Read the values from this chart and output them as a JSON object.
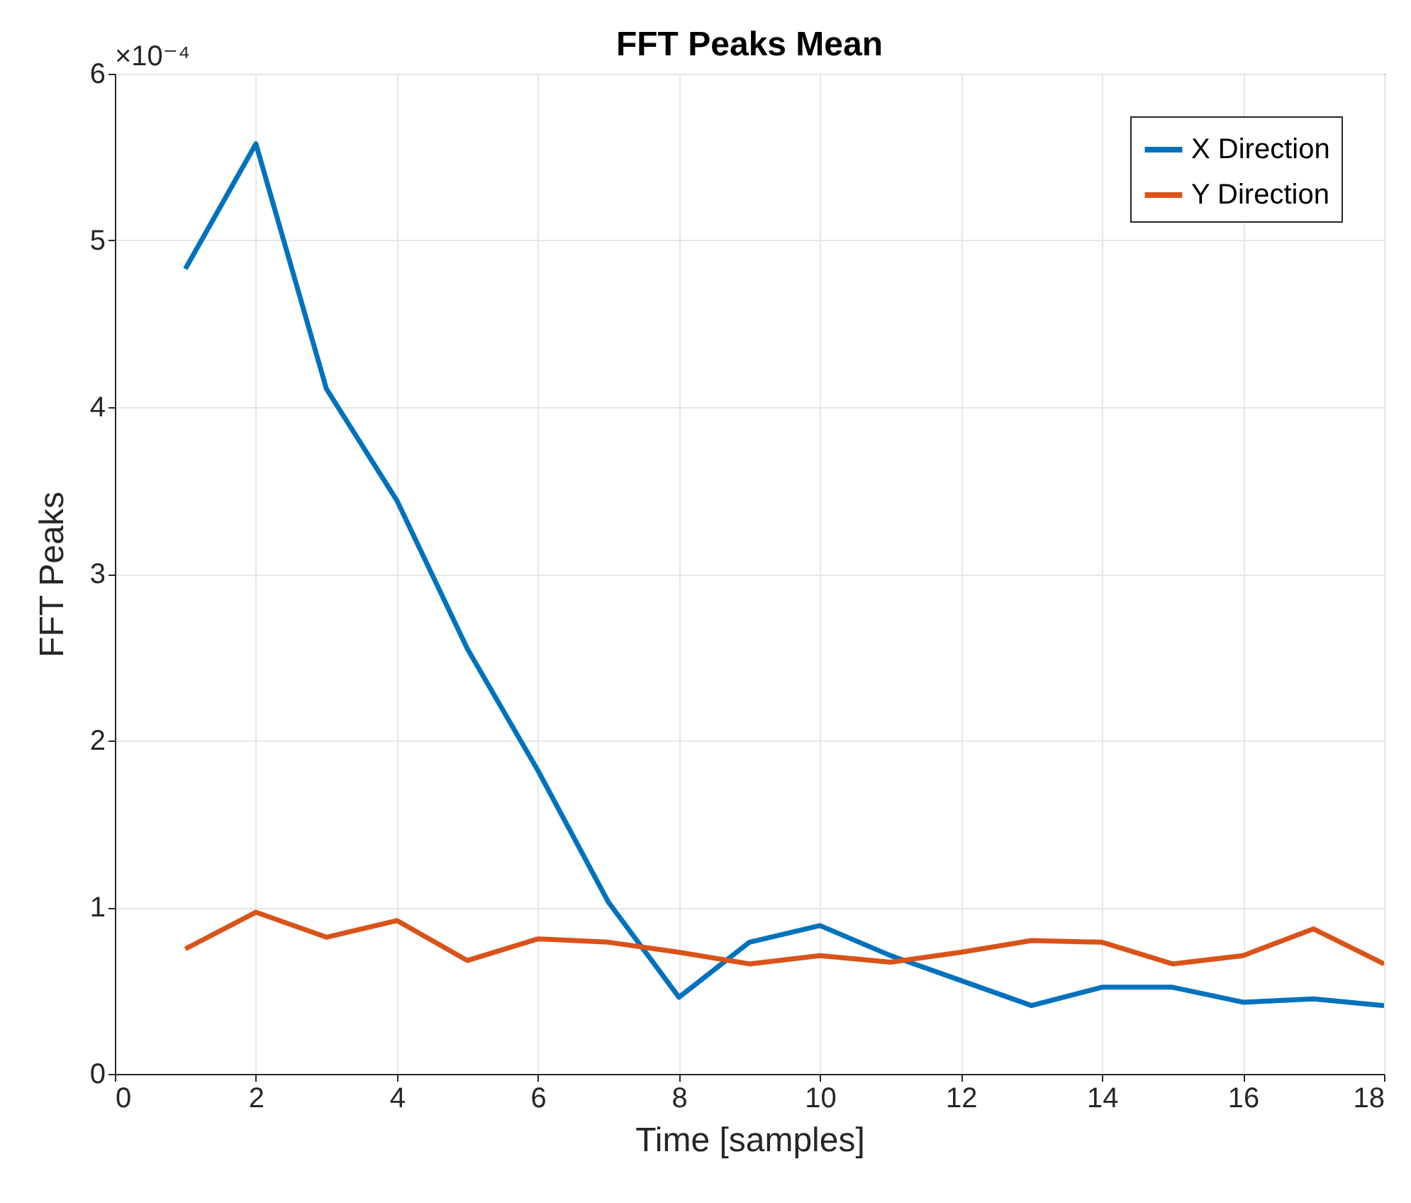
{
  "chart_data": {
    "type": "line",
    "title": "FFT Peaks Mean",
    "xlabel": "Time [samples]",
    "ylabel": "FFT Peaks",
    "annotations": [
      "×10⁻⁴"
    ],
    "x": [
      1,
      2,
      3,
      4,
      5,
      6,
      7,
      8,
      9,
      10,
      11,
      12,
      13,
      14,
      15,
      16,
      17,
      18
    ],
    "series": [
      {
        "name": "X Direction",
        "color": "#0072bd",
        "values": [
          4.83,
          5.58,
          4.11,
          3.44,
          2.55,
          1.82,
          1.03,
          0.46,
          0.79,
          0.89,
          0.71,
          0.56,
          0.41,
          0.52,
          0.52,
          0.43,
          0.45,
          0.41
        ]
      },
      {
        "name": "Y Direction",
        "color": "#d95319",
        "values": [
          0.75,
          0.97,
          0.82,
          0.92,
          0.68,
          0.81,
          0.79,
          0.73,
          0.66,
          0.71,
          0.67,
          0.73,
          0.8,
          0.79,
          0.66,
          0.71,
          0.87,
          0.66
        ]
      }
    ],
    "xlim": [
      0,
      18
    ],
    "xticks": [
      0,
      2,
      4,
      6,
      8,
      10,
      12,
      14,
      16,
      18
    ],
    "ylim": [
      0,
      6
    ],
    "yticks": [
      0,
      1,
      2,
      3,
      4,
      5,
      6
    ],
    "grid": true,
    "legend": "top right"
  }
}
